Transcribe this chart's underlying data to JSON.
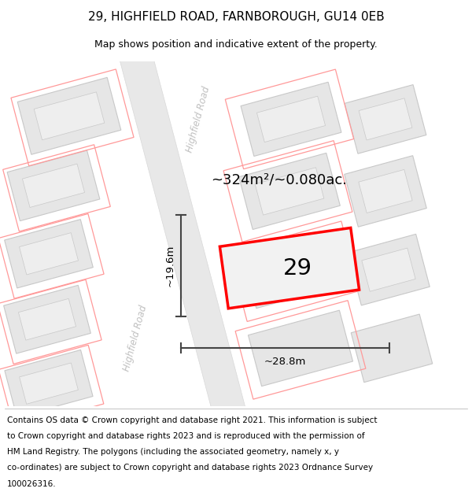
{
  "title": "29, HIGHFIELD ROAD, FARNBOROUGH, GU14 0EB",
  "subtitle": "Map shows position and indicative extent of the property.",
  "footer_lines": [
    "Contains OS data © Crown copyright and database right 2021. This information is subject",
    "to Crown copyright and database rights 2023 and is reproduced with the permission of",
    "HM Land Registry. The polygons (including the associated geometry, namely x, y",
    "co-ordinates) are subject to Crown copyright and database rights 2023 Ordnance Survey",
    "100026316."
  ],
  "area_label": "~324m²/~0.080ac.",
  "number_label": "29",
  "width_label": "~28.8m",
  "height_label": "~19.6m",
  "road_label_top": "Highfield Road",
  "road_label_bot": "Highfield Road",
  "bg_color": "#ffffff",
  "map_bg": "#f8f8f8",
  "building_fill": "#e6e6e6",
  "building_stroke": "#c8c8c8",
  "inner_fill": "#eeeeee",
  "road_fill": "#e8e8e8",
  "road_stroke": "#d8d8d8",
  "highlight_fill": "#f2f2f2",
  "highlight_stroke": "#ff0000",
  "pink_stroke": "#ff9999",
  "measure_color": "#444444",
  "text_color": "#000000",
  "road_text_color": "#c0c0c0",
  "title_fontsize": 11,
  "subtitle_fontsize": 9,
  "footer_fontsize": 7.5,
  "figsize": [
    6.0,
    6.25
  ],
  "dpi": 100,
  "map_xlim": [
    0,
    600
  ],
  "map_ylim": [
    0,
    430
  ]
}
